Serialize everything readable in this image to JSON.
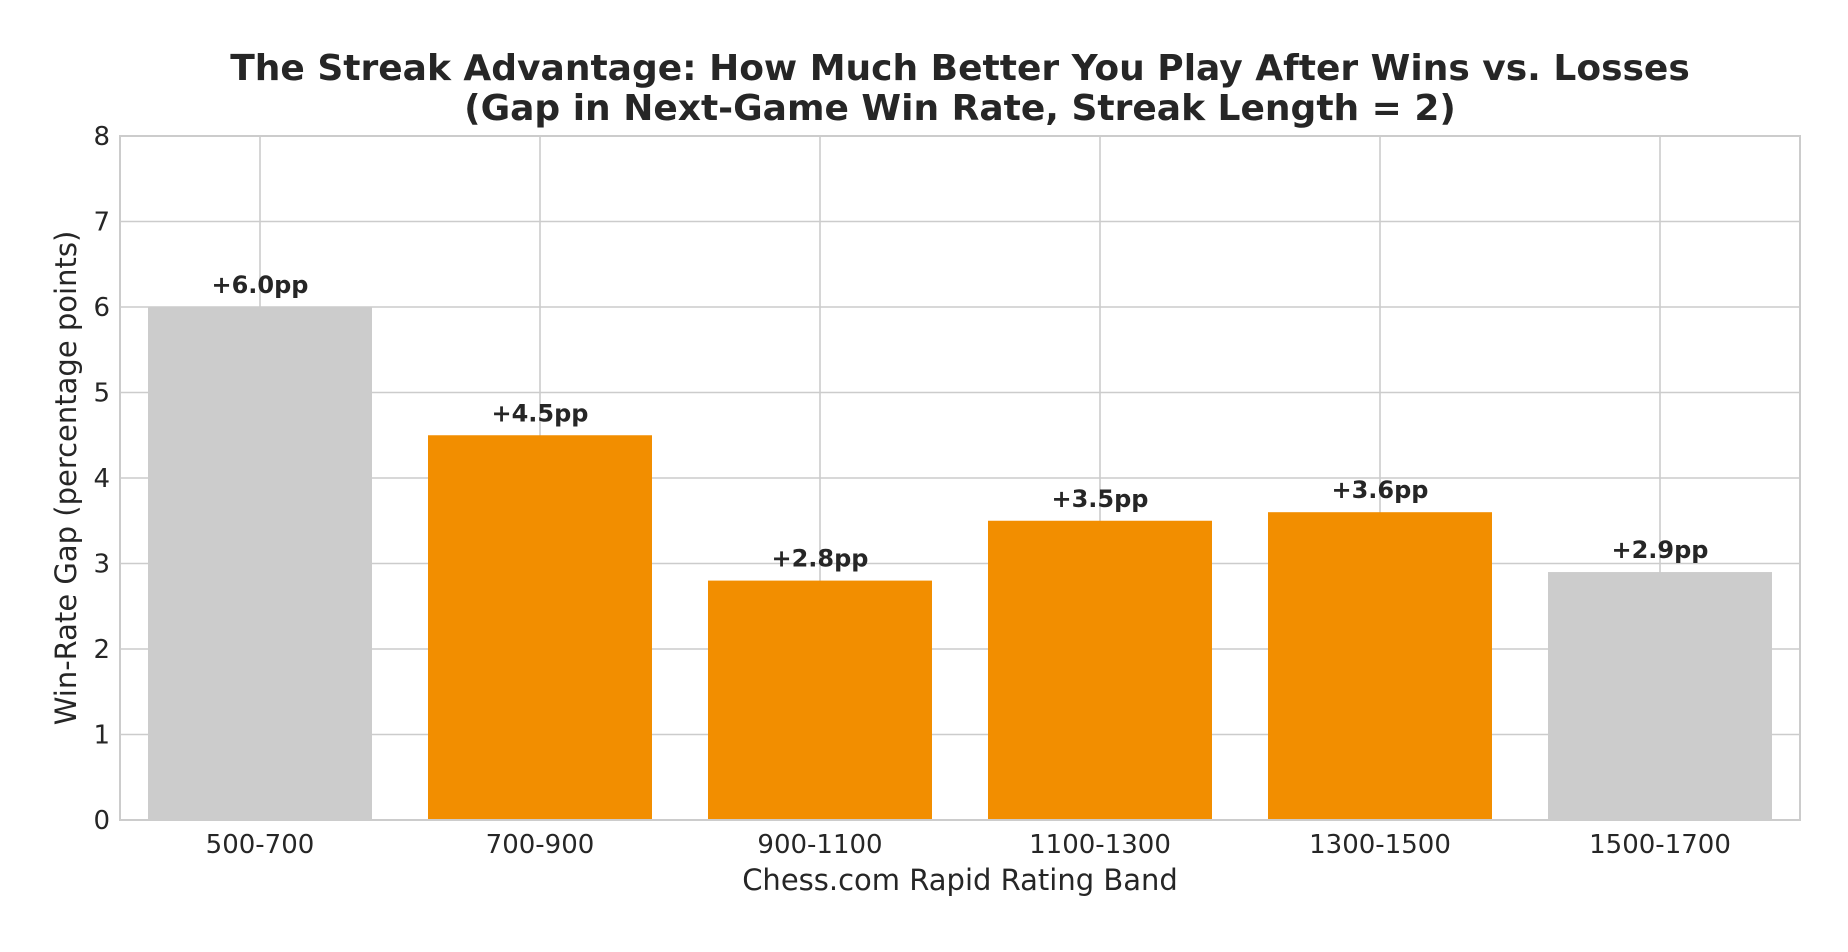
{
  "chart_data": {
    "type": "bar",
    "title_lines": [
      "The Streak Advantage: How Much Better You Play After Wins vs. Losses",
      "(Gap in Next-Game Win Rate, Streak Length = 2)"
    ],
    "xlabel": "Chess.com Rapid Rating Band",
    "ylabel": "Win-Rate Gap (percentage points)",
    "categories": [
      "500-700",
      "700-900",
      "900-1100",
      "1100-1300",
      "1300-1500",
      "1500-1700"
    ],
    "values": [
      6.0,
      4.5,
      2.8,
      3.5,
      3.6,
      2.9
    ],
    "data_labels": [
      "+6.0pp",
      "+4.5pp",
      "+2.8pp",
      "+3.5pp",
      "+3.6pp",
      "+2.9pp"
    ],
    "bar_colors": [
      "#cccccc",
      "#f28e00",
      "#f28e00",
      "#f28e00",
      "#f28e00",
      "#cccccc"
    ],
    "ylim": [
      0,
      8
    ],
    "yticks": [
      "0",
      "1",
      "2",
      "3",
      "4",
      "5",
      "6",
      "7",
      "8"
    ],
    "grid": true
  }
}
